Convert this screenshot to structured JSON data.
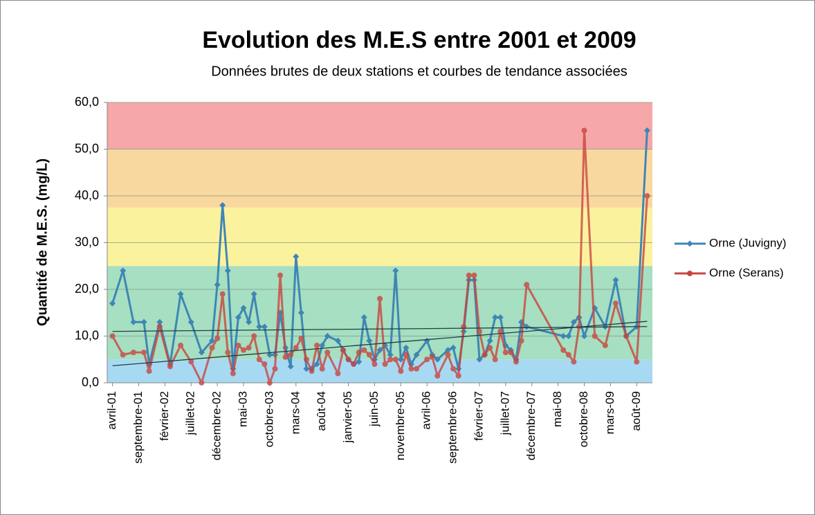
{
  "chart_data": {
    "type": "line",
    "title": "Evolution des M.E.S entre 2001 et 2009",
    "subtitle": "Données brutes de deux stations et courbes de tendance associées",
    "y_label": "Quantité de M.E.S. (mg/L)",
    "ylim": [
      0,
      60
    ],
    "yticks": [
      {
        "value": 0,
        "label": "0,0"
      },
      {
        "value": 10,
        "label": "10,0"
      },
      {
        "value": 20,
        "label": "20,0"
      },
      {
        "value": 30,
        "label": "30,0"
      },
      {
        "value": 40,
        "label": "40,0"
      },
      {
        "value": 50,
        "label": "50,0"
      },
      {
        "value": 60,
        "label": "60,0"
      }
    ],
    "xlim": [
      "2001-03",
      "2009-11"
    ],
    "xticks": [
      {
        "value": "2001-04",
        "label": "avril-01"
      },
      {
        "value": "2001-09",
        "label": "septembre-01"
      },
      {
        "value": "2002-02",
        "label": "février-02"
      },
      {
        "value": "2002-07",
        "label": "juillet-02"
      },
      {
        "value": "2002-12",
        "label": "décembre-02"
      },
      {
        "value": "2003-05",
        "label": "mai-03"
      },
      {
        "value": "2003-10",
        "label": "octobre-03"
      },
      {
        "value": "2004-03",
        "label": "mars-04"
      },
      {
        "value": "2004-08",
        "label": "août-04"
      },
      {
        "value": "2005-01",
        "label": "janvier-05"
      },
      {
        "value": "2005-06",
        "label": "juin-05"
      },
      {
        "value": "2005-11",
        "label": "novembre-05"
      },
      {
        "value": "2006-04",
        "label": "avril-06"
      },
      {
        "value": "2006-09",
        "label": "septembre-06"
      },
      {
        "value": "2007-02",
        "label": "février-07"
      },
      {
        "value": "2007-07",
        "label": "juillet-07"
      },
      {
        "value": "2007-12",
        "label": "décembre-07"
      },
      {
        "value": "2008-05",
        "label": "mai-08"
      },
      {
        "value": "2008-10",
        "label": "octobre-08"
      },
      {
        "value": "2009-03",
        "label": "mars-09"
      },
      {
        "value": "2009-08",
        "label": "août-09"
      }
    ],
    "bands": [
      {
        "from": 0,
        "to": 5,
        "color": "#a7d9f2"
      },
      {
        "from": 5,
        "to": 25,
        "color": "#a6dfc1"
      },
      {
        "from": 25,
        "to": 37.5,
        "color": "#fbf29e"
      },
      {
        "from": 37.5,
        "to": 50,
        "color": "#f9d89f"
      },
      {
        "from": 50,
        "to": 60,
        "color": "#f6a7a7"
      }
    ],
    "grid": true,
    "trendline": true,
    "legend": "right",
    "x": [
      "2001-04",
      "2001-06",
      "2001-08",
      "2001-10",
      "2001-11",
      "2002-01",
      "2002-03",
      "2002-05",
      "2002-07",
      "2002-09",
      "2002-11",
      "2002-12",
      "2003-01",
      "2003-02",
      "2003-03",
      "2003-04",
      "2003-05",
      "2003-06",
      "2003-07",
      "2003-08",
      "2003-09",
      "2003-10",
      "2003-11",
      "2003-12",
      "2004-01",
      "2004-02",
      "2004-03",
      "2004-04",
      "2004-05",
      "2004-06",
      "2004-07",
      "2004-08",
      "2004-09",
      "2004-11",
      "2004-12",
      "2005-01",
      "2005-02",
      "2005-03",
      "2005-04",
      "2005-05",
      "2005-06",
      "2005-07",
      "2005-08",
      "2005-09",
      "2005-10",
      "2005-11",
      "2005-12",
      "2006-01",
      "2006-02",
      "2006-04",
      "2006-05",
      "2006-06",
      "2006-08",
      "2006-09",
      "2006-10",
      "2006-11",
      "2006-12",
      "2007-01",
      "2007-02",
      "2007-03",
      "2007-04",
      "2007-05",
      "2007-06",
      "2007-07",
      "2007-08",
      "2007-09",
      "2007-10",
      "2007-11",
      "2008-06",
      "2008-07",
      "2008-08",
      "2008-09",
      "2008-10",
      "2008-12",
      "2009-02",
      "2009-04",
      "2009-06",
      "2009-08",
      "2009-10"
    ],
    "series": [
      {
        "name": "Orne (Juvigny)",
        "color": "#3f86b5",
        "marker": "diamond",
        "values": [
          17,
          24,
          13,
          13,
          4,
          13,
          4,
          19,
          13,
          6.5,
          9,
          21,
          38,
          24,
          3,
          14,
          16,
          13,
          19,
          12,
          12,
          6,
          6,
          15,
          7.5,
          3.5,
          27,
          15,
          3,
          3,
          4,
          8,
          10,
          9,
          7,
          5,
          4,
          4.5,
          14,
          9,
          5,
          7,
          8,
          6,
          24,
          5,
          7.5,
          4,
          6,
          9,
          6,
          5,
          7,
          7.5,
          3,
          11,
          22,
          22,
          5,
          6,
          9,
          14,
          14,
          8,
          7,
          5,
          13,
          12,
          10,
          10,
          13,
          14,
          10,
          16,
          12,
          22,
          10,
          12,
          54
        ]
      },
      {
        "name": "Orne (Serans)",
        "color": "#c9453f",
        "marker": "circle",
        "values": [
          10,
          6,
          6.5,
          6.5,
          2.5,
          12,
          3.5,
          8,
          4.5,
          0,
          7.5,
          9.5,
          19,
          6.5,
          2,
          8,
          7,
          7.5,
          10,
          5,
          4,
          0,
          3,
          23,
          5.5,
          6,
          7.5,
          9.5,
          5,
          2.5,
          8,
          3,
          6.5,
          2,
          7,
          5,
          4,
          6.5,
          7,
          6,
          4,
          18,
          4,
          5,
          5,
          2.5,
          6,
          3,
          3,
          5,
          5.5,
          1.5,
          6,
          3,
          1.5,
          12,
          23,
          23,
          11,
          6,
          7.5,
          5,
          11,
          6.5,
          6.5,
          4.5,
          9,
          21,
          7,
          6,
          4.5,
          12,
          54,
          10,
          8,
          17,
          10,
          4.5,
          40
        ]
      }
    ]
  }
}
